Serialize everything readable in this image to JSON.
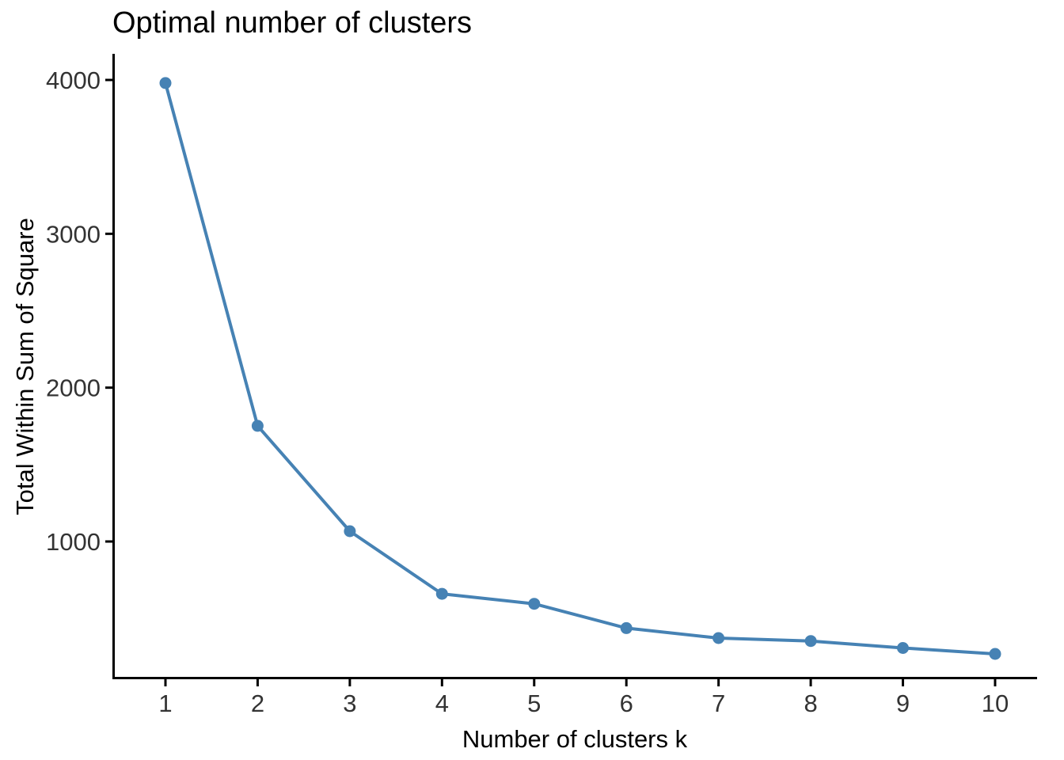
{
  "figure": {
    "background_color": "#FFFFFF"
  },
  "chart_data": {
    "type": "line",
    "title": "Optimal number of clusters",
    "xlabel": "Number of clusters k",
    "ylabel": "Total Within Sum of Square",
    "x": [
      1,
      2,
      3,
      4,
      5,
      6,
      7,
      8,
      9,
      10
    ],
    "values": [
      3980,
      1752,
      1067,
      660,
      595,
      437,
      372,
      353,
      308,
      269
    ],
    "xticks": [
      1,
      2,
      3,
      4,
      5,
      6,
      7,
      8,
      9,
      10
    ],
    "yticks": [
      1000,
      2000,
      3000,
      4000
    ],
    "xlim": [
      0.45,
      10.45
    ],
    "ylim": [
      100,
      4170
    ],
    "grid": false,
    "legend_position": "none",
    "marker": "circle",
    "series_color": "#4682B4",
    "axis_color": "#000000",
    "tick_label_color": "#333333",
    "title_color": "#000000"
  }
}
